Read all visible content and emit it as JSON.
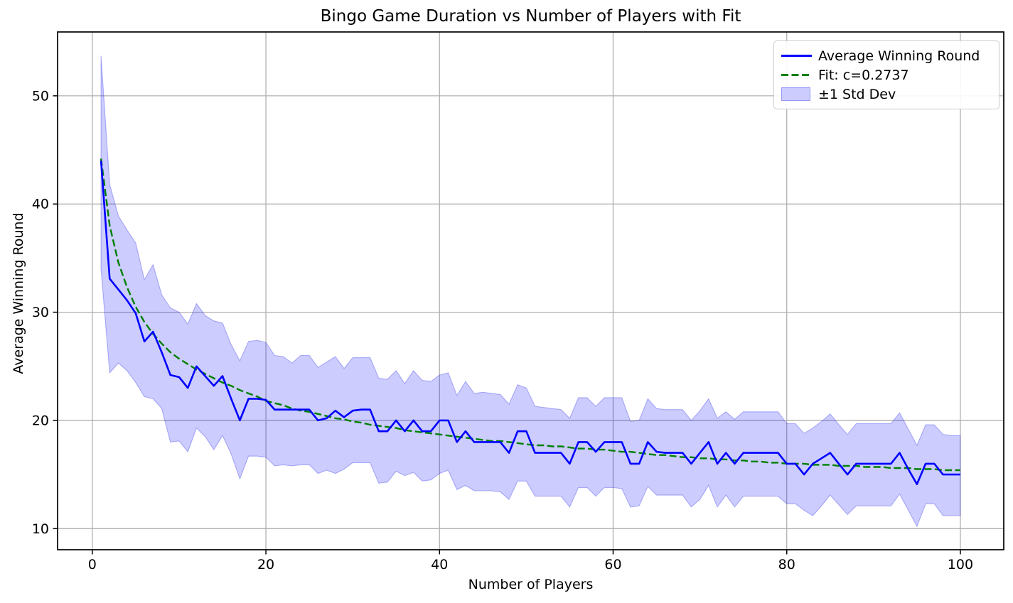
{
  "figure": {
    "title": "Bingo Game Duration vs Number of Players with Fit",
    "xlabel": "Number of Players",
    "ylabel": "Average Winning Round"
  },
  "legend": {
    "items": [
      {
        "label": "Average Winning Round",
        "swatch": "solid-line",
        "color": "#0000ff"
      },
      {
        "label": "Fit: c=0.2737",
        "swatch": "dashed-line",
        "color": "#008000"
      },
      {
        "label": "±1 Std Dev",
        "swatch": "patch",
        "color": "#ccccff"
      }
    ]
  },
  "colors": {
    "avg_line": "#0000ff",
    "fit_line": "#008000",
    "band_fill": "#0000ff",
    "band_fill_opacity": 0.2,
    "band_edge": "rgba(50,50,230,0.35)",
    "grid": "#b0b0b0",
    "spine": "#000000",
    "background": "#ffffff"
  },
  "chart_data": {
    "type": "line",
    "title": "Bingo Game Duration vs Number of Players with Fit",
    "xlabel": "Number of Players",
    "ylabel": "Average Winning Round",
    "grid": true,
    "legend_position": "upper right",
    "xlim": [
      -4,
      105
    ],
    "ylim": [
      8.05,
      55.9
    ],
    "xticks": [
      0,
      20,
      40,
      60,
      80,
      100
    ],
    "yticks": [
      10,
      20,
      30,
      40,
      50
    ],
    "x": {
      "start": 1,
      "step": 1,
      "count": 100
    },
    "series": [
      {
        "name": "Average Winning Round",
        "style": "solid",
        "color": "#0000ff",
        "values": [
          44.0,
          33.1,
          32.1,
          31.1,
          29.9,
          27.3,
          28.2,
          26.3,
          24.2,
          24.0,
          23.0,
          25.0,
          24.1,
          23.2,
          24.1,
          22.0,
          20.0,
          22.0,
          22.0,
          21.9,
          21.0,
          21.0,
          21.0,
          21.0,
          21.0,
          20.0,
          20.2,
          20.9,
          20.3,
          20.9,
          21.0,
          21.0,
          19.0,
          19.0,
          20.0,
          19.0,
          20.0,
          19.0,
          19.0,
          20.0,
          20.0,
          18.0,
          19.0,
          18.0,
          18.0,
          18.0,
          18.0,
          17.0,
          19.0,
          19.0,
          17.0,
          17.0,
          17.0,
          17.0,
          16.0,
          18.0,
          18.0,
          17.1,
          18.0,
          18.0,
          18.0,
          16.0,
          16.0,
          18.0,
          17.1,
          17.0,
          17.0,
          17.0,
          16.0,
          17.0,
          18.0,
          16.0,
          17.0,
          16.0,
          17.0,
          17.0,
          17.0,
          17.0,
          17.0,
          16.0,
          16.0,
          15.0,
          16.0,
          16.5,
          17.0,
          16.0,
          15.0,
          16.0,
          16.0,
          16.0,
          16.0,
          16.0,
          17.0,
          15.5,
          14.1,
          16.0,
          16.0,
          15.0,
          15.0,
          15.0
        ]
      },
      {
        "name": "Fit: c=0.2737",
        "style": "dashed",
        "color": "#008000",
        "values": [
          44.2,
          38.0,
          34.6,
          32.3,
          30.5,
          29.1,
          28.0,
          27.1,
          26.3,
          25.7,
          25.2,
          24.7,
          24.3,
          23.9,
          23.5,
          23.2,
          22.8,
          22.5,
          22.2,
          21.8,
          21.6,
          21.4,
          21.1,
          20.9,
          20.8,
          20.6,
          20.4,
          20.2,
          20.1,
          19.9,
          19.8,
          19.6,
          19.5,
          19.4,
          19.3,
          19.1,
          19.0,
          18.9,
          18.8,
          18.7,
          18.6,
          18.5,
          18.4,
          18.3,
          18.2,
          18.1,
          18.1,
          18.0,
          17.9,
          17.8,
          17.7,
          17.7,
          17.6,
          17.6,
          17.5,
          17.4,
          17.4,
          17.3,
          17.3,
          17.2,
          17.1,
          17.1,
          17.0,
          16.9,
          16.8,
          16.8,
          16.7,
          16.6,
          16.6,
          16.5,
          16.5,
          16.4,
          16.4,
          16.3,
          16.3,
          16.2,
          16.2,
          16.1,
          16.1,
          16.0,
          16.0,
          16.0,
          15.9,
          15.9,
          15.9,
          15.8,
          15.8,
          15.8,
          15.7,
          15.7,
          15.7,
          15.6,
          15.6,
          15.6,
          15.5,
          15.5,
          15.5,
          15.4,
          15.4,
          15.4
        ]
      }
    ],
    "band": {
      "name": "±1 Std Dev",
      "upper": [
        53.7,
        41.8,
        38.9,
        37.6,
        36.4,
        33.0,
        34.4,
        31.6,
        30.4,
        30.0,
        28.9,
        30.8,
        29.7,
        29.2,
        29.0,
        27.0,
        25.5,
        27.3,
        27.4,
        27.2,
        26.0,
        25.9,
        25.3,
        26.0,
        26.0,
        24.9,
        25.4,
        25.9,
        24.8,
        25.8,
        25.8,
        25.8,
        23.9,
        23.8,
        24.6,
        23.4,
        24.6,
        23.7,
        23.6,
        24.2,
        24.4,
        22.3,
        23.6,
        22.5,
        22.6,
        22.5,
        22.4,
        21.5,
        23.3,
        23.0,
        21.3,
        21.2,
        21.1,
        21.0,
        20.2,
        22.1,
        22.1,
        21.3,
        22.1,
        22.1,
        22.1,
        19.9,
        20.0,
        22.0,
        21.1,
        21.0,
        21.0,
        21.0,
        20.0,
        20.9,
        22.0,
        20.2,
        20.8,
        20.1,
        20.8,
        20.8,
        20.8,
        20.8,
        20.8,
        19.7,
        19.7,
        18.8,
        19.3,
        19.9,
        20.6,
        19.6,
        18.7,
        19.7,
        19.7,
        19.7,
        19.7,
        19.7,
        20.7,
        19.2,
        17.7,
        19.6,
        19.6,
        18.7,
        18.6,
        18.6
      ],
      "lower": [
        34.0,
        24.4,
        25.3,
        24.6,
        23.5,
        22.2,
        22.0,
        21.1,
        18.0,
        18.1,
        17.1,
        19.3,
        18.5,
        17.3,
        18.6,
        16.9,
        14.6,
        16.7,
        16.7,
        16.6,
        15.8,
        15.9,
        15.8,
        15.9,
        15.9,
        15.1,
        15.4,
        15.1,
        15.5,
        16.1,
        16.1,
        16.1,
        14.2,
        14.3,
        15.3,
        14.9,
        15.2,
        14.4,
        14.5,
        15.1,
        15.4,
        13.6,
        14.0,
        13.5,
        13.5,
        13.5,
        13.4,
        12.7,
        14.4,
        14.4,
        13.0,
        13.0,
        13.0,
        13.0,
        12.0,
        13.8,
        13.8,
        13.0,
        13.8,
        13.8,
        13.7,
        12.0,
        12.1,
        13.9,
        13.1,
        13.1,
        13.1,
        13.1,
        12.0,
        12.7,
        14.0,
        12.0,
        13.1,
        12.0,
        13.0,
        13.0,
        13.0,
        13.0,
        13.0,
        12.3,
        12.3,
        11.7,
        11.2,
        12.1,
        13.1,
        12.2,
        11.3,
        12.1,
        12.1,
        12.1,
        12.1,
        12.1,
        13.2,
        11.7,
        10.2,
        12.3,
        12.3,
        11.2,
        11.2,
        11.2
      ]
    }
  }
}
